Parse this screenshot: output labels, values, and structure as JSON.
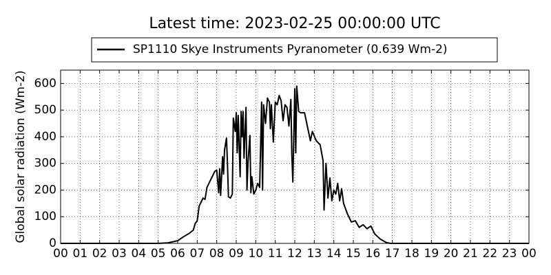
{
  "chart_data": {
    "type": "line",
    "title": "Latest time: 2023-02-25 00:00:00 UTC",
    "y_label": "Global solar radiation (Wm-2)",
    "x": [
      0,
      5,
      5.5,
      6,
      6.3,
      6.6,
      6.8,
      6.9,
      7.0,
      7.1,
      7.3,
      7.4,
      7.5,
      7.7,
      7.9,
      8.0,
      8.1,
      8.15,
      8.2,
      8.3,
      8.35,
      8.4,
      8.5,
      8.55,
      8.6,
      8.7,
      8.8,
      8.85,
      8.95,
      9.0,
      9.05,
      9.1,
      9.2,
      9.25,
      9.3,
      9.35,
      9.4,
      9.5,
      9.55,
      9.6,
      9.7,
      9.75,
      9.8,
      9.9,
      10.0,
      10.1,
      10.2,
      10.3,
      10.35,
      10.4,
      10.5,
      10.6,
      10.7,
      10.75,
      10.8,
      10.9,
      11.0,
      11.1,
      11.2,
      11.3,
      11.4,
      11.5,
      11.6,
      11.7,
      11.8,
      11.85,
      11.9,
      12.0,
      12.05,
      12.1,
      12.2,
      12.3,
      12.5,
      12.7,
      12.8,
      12.9,
      13.1,
      13.3,
      13.45,
      13.5,
      13.6,
      13.7,
      13.8,
      13.9,
      14.0,
      14.1,
      14.2,
      14.3,
      14.4,
      14.5,
      14.7,
      14.9,
      15.1,
      15.3,
      15.5,
      15.7,
      15.9,
      16.1,
      16.4,
      16.7,
      16.9,
      24
    ],
    "series": [
      {
        "name": "SP1110 Skye Instruments Pyranometer (0.639 Wm-2)",
        "color": "#000000",
        "values": [
          0,
          0,
          2,
          10,
          25,
          38,
          50,
          75,
          85,
          140,
          170,
          165,
          210,
          240,
          270,
          275,
          190,
          280,
          180,
          325,
          260,
          350,
          395,
          300,
          175,
          170,
          185,
          470,
          420,
          490,
          340,
          480,
          250,
          495,
          400,
          495,
          320,
          510,
          200,
          300,
          405,
          190,
          250,
          185,
          200,
          225,
          210,
          530,
          200,
          520,
          450,
          545,
          530,
          430,
          520,
          380,
          530,
          520,
          555,
          535,
          460,
          520,
          510,
          440,
          540,
          330,
          230,
          580,
          340,
          590,
          495,
          490,
          490,
          420,
          385,
          420,
          385,
          370,
          310,
          125,
          300,
          170,
          245,
          160,
          200,
          185,
          225,
          160,
          205,
          150,
          110,
          80,
          85,
          60,
          70,
          55,
          65,
          35,
          15,
          3,
          0,
          0
        ]
      }
    ],
    "xlim": [
      0,
      24
    ],
    "xticks": [
      {
        "value": 0,
        "label": "00"
      },
      {
        "value": 1,
        "label": "01"
      },
      {
        "value": 2,
        "label": "02"
      },
      {
        "value": 3,
        "label": "03"
      },
      {
        "value": 4,
        "label": "04"
      },
      {
        "value": 5,
        "label": "05"
      },
      {
        "value": 6,
        "label": "06"
      },
      {
        "value": 7,
        "label": "07"
      },
      {
        "value": 8,
        "label": "08"
      },
      {
        "value": 9,
        "label": "09"
      },
      {
        "value": 10,
        "label": "10"
      },
      {
        "value": 11,
        "label": "11"
      },
      {
        "value": 12,
        "label": "12"
      },
      {
        "value": 13,
        "label": "13"
      },
      {
        "value": 14,
        "label": "14"
      },
      {
        "value": 15,
        "label": "15"
      },
      {
        "value": 16,
        "label": "16"
      },
      {
        "value": 17,
        "label": "17"
      },
      {
        "value": 18,
        "label": "18"
      },
      {
        "value": 19,
        "label": "19"
      },
      {
        "value": 20,
        "label": "20"
      },
      {
        "value": 21,
        "label": "21"
      },
      {
        "value": 22,
        "label": "22"
      },
      {
        "value": 23,
        "label": "23"
      },
      {
        "value": 24,
        "label": "00"
      }
    ],
    "ylim": [
      0,
      650
    ],
    "yticks": [
      0,
      100,
      200,
      300,
      400,
      500,
      600
    ],
    "grid": true
  }
}
